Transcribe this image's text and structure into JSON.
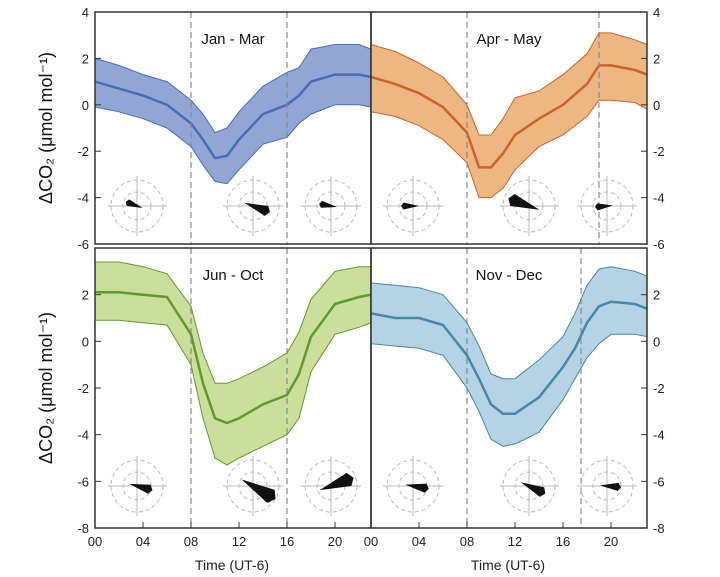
{
  "figure": {
    "ylabel_left": "ΔCO₂ (μmol mol⁻¹)",
    "xlabel": "Time (UT-6)"
  },
  "chart_data": [
    {
      "type": "area",
      "title": "Jan - Mar",
      "color": "#4a6cb5",
      "fill": "#7f97cf",
      "x": [
        0,
        2,
        4,
        6,
        8,
        9,
        10,
        11,
        12,
        14,
        16,
        17,
        18,
        20,
        22,
        23
      ],
      "mean": [
        1.0,
        0.7,
        0.4,
        0.0,
        -0.8,
        -1.5,
        -2.3,
        -2.2,
        -1.5,
        -0.4,
        0.0,
        0.4,
        1.0,
        1.3,
        1.3,
        1.2
      ],
      "upper": [
        2.0,
        1.7,
        1.3,
        1.0,
        0.2,
        -0.4,
        -1.2,
        -1.0,
        -0.3,
        0.8,
        1.4,
        1.6,
        2.4,
        2.6,
        2.6,
        2.4
      ],
      "lower": [
        -0.1,
        -0.3,
        -0.6,
        -1.0,
        -1.8,
        -2.6,
        -3.3,
        -3.4,
        -2.8,
        -1.7,
        -1.4,
        -0.8,
        -0.4,
        0.0,
        0.0,
        -0.1
      ],
      "vlines": [
        8,
        16
      ],
      "xlim": [
        0,
        23
      ],
      "ylim": [
        -6,
        4
      ],
      "yticks": [
        4,
        2,
        0,
        -2,
        -4,
        -6
      ],
      "xticks": [],
      "wind_rose_count": 3
    },
    {
      "type": "area",
      "title": "Apr - May",
      "color": "#d0602d",
      "fill": "#e9aa6b",
      "x": [
        0,
        2,
        4,
        6,
        8,
        9,
        10,
        11,
        12,
        14,
        16,
        18,
        19,
        20,
        22,
        23
      ],
      "mean": [
        1.2,
        0.9,
        0.5,
        -0.1,
        -1.2,
        -2.7,
        -2.7,
        -2.1,
        -1.3,
        -0.6,
        0.0,
        0.9,
        1.7,
        1.7,
        1.5,
        1.3
      ],
      "upper": [
        2.6,
        2.3,
        1.8,
        1.2,
        0.0,
        -1.3,
        -1.3,
        -0.6,
        0.3,
        0.6,
        1.3,
        2.2,
        3.1,
        3.1,
        2.8,
        2.6
      ],
      "lower": [
        -0.3,
        -0.5,
        -0.9,
        -1.5,
        -2.5,
        -4.0,
        -4.0,
        -3.6,
        -2.8,
        -1.8,
        -1.3,
        -0.5,
        0.2,
        0.2,
        0.1,
        -0.2
      ],
      "vlines": [
        8,
        19
      ],
      "xlim": [
        0,
        23
      ],
      "ylim": [
        -6,
        4
      ],
      "yticks": [
        4,
        2,
        0,
        -2,
        -4,
        -6
      ],
      "xticks": [],
      "wind_rose_count": 3
    },
    {
      "type": "area",
      "title": "Jun - Oct",
      "color": "#5f9a2c",
      "fill": "#c2d98b",
      "x": [
        0,
        2,
        4,
        6,
        8,
        9,
        10,
        11,
        12,
        14,
        16,
        17,
        18,
        20,
        22,
        23
      ],
      "mean": [
        2.1,
        2.1,
        2.0,
        1.9,
        0.3,
        -1.8,
        -3.3,
        -3.5,
        -3.3,
        -2.7,
        -2.3,
        -1.4,
        0.2,
        1.6,
        1.9,
        2.0
      ],
      "upper": [
        3.4,
        3.4,
        3.2,
        2.9,
        1.5,
        -0.5,
        -1.8,
        -1.8,
        -1.6,
        -1.1,
        -0.5,
        0.4,
        1.8,
        3.0,
        3.2,
        3.2
      ],
      "lower": [
        0.9,
        0.9,
        0.8,
        0.7,
        -1.0,
        -3.3,
        -5.0,
        -5.3,
        -5.0,
        -4.5,
        -4.0,
        -3.3,
        -1.3,
        0.3,
        0.6,
        0.8
      ],
      "vlines": [
        8,
        16
      ],
      "xlim": [
        0,
        23
      ],
      "ylim": [
        -8,
        4
      ],
      "yticks": [
        2,
        0,
        -2,
        -4,
        -6,
        -8
      ],
      "xticks": [
        "00",
        "04",
        "08",
        "12",
        "16",
        "20"
      ],
      "wind_rose_count": 3
    },
    {
      "type": "area",
      "title": "Nov - Dec",
      "color": "#4a86a6",
      "fill": "#a7cde2",
      "x": [
        0,
        2,
        4,
        6,
        8,
        9,
        10,
        11,
        12,
        14,
        16,
        17,
        18,
        19,
        20,
        22,
        23
      ],
      "mean": [
        1.2,
        1.0,
        1.0,
        0.7,
        -0.6,
        -1.6,
        -2.7,
        -3.1,
        -3.1,
        -2.4,
        -1.1,
        -0.3,
        0.8,
        1.5,
        1.7,
        1.6,
        1.4
      ],
      "upper": [
        2.5,
        2.4,
        2.3,
        2.0,
        0.8,
        -0.2,
        -1.4,
        -1.6,
        -1.6,
        -0.8,
        0.2,
        1.2,
        2.4,
        3.1,
        3.2,
        3.0,
        2.8
      ],
      "lower": [
        -0.1,
        -0.2,
        -0.3,
        -0.6,
        -2.0,
        -3.0,
        -4.2,
        -4.5,
        -4.4,
        -3.9,
        -2.5,
        -1.6,
        -0.7,
        -0.1,
        0.3,
        0.3,
        0.2
      ],
      "vlines": [
        8,
        17.5
      ],
      "xlim": [
        0,
        23
      ],
      "ylim": [
        -8,
        4
      ],
      "yticks": [
        2,
        0,
        -2,
        -4,
        -6,
        -8
      ],
      "xticks": [
        "00",
        "04",
        "08",
        "12",
        "16",
        "20"
      ],
      "wind_rose_count": 3
    }
  ]
}
